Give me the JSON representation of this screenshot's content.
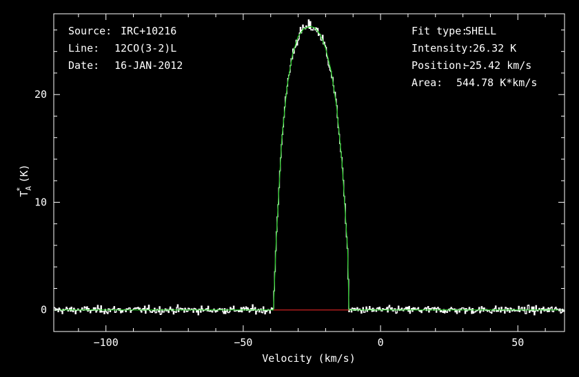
{
  "source_block": {
    "source_label": "Source:",
    "source_value": "IRC+10216",
    "line_label": "Line:",
    "line_value": "12CO(3-2)L",
    "date_label": "Date:",
    "date_value": "16-JAN-2012"
  },
  "fit_block": {
    "fit_type_label": "Fit type:",
    "fit_type_value": "SHELL",
    "intensity_label": "Intensity:",
    "intensity_value": "26.32 K",
    "position_label": "Position:",
    "position_value": "−25.42 km/s",
    "area_label": "Area:",
    "area_value": "544.78 K*km/s"
  },
  "colors": {
    "background": "#000000",
    "axes": "#ffffff",
    "spectrum": "#ffffff",
    "fit": "#22cc22",
    "baseline": "#cc2222"
  },
  "chart_data": {
    "type": "line",
    "xlabel": "Velocity (km/s)",
    "ylabel_main": "T",
    "ylabel_sup": "*",
    "ylabel_sub": "A",
    "ylabel_unit": "(K)",
    "xlim": [
      -119,
      67
    ],
    "ylim": [
      -2,
      27.5
    ],
    "x_ticks": [
      -100,
      -50,
      0,
      50
    ],
    "x_tick_labels": [
      "−100",
      "−50",
      "0",
      "50"
    ],
    "y_ticks": [
      0,
      10,
      20
    ],
    "y_tick_labels": [
      "0",
      "10",
      "20"
    ],
    "fit": {
      "name": "SHELL fit",
      "center": -25.42,
      "peak": 26.32,
      "v_left": -39,
      "v_right": -11.5,
      "x": [
        -119,
        -39,
        -38,
        -36,
        -34,
        -32,
        -30,
        -28,
        -26,
        -25.42,
        -24,
        -22,
        -20,
        -18,
        -16,
        -14,
        -12,
        -11.5,
        67
      ],
      "y": [
        0,
        0,
        6.5,
        15.8,
        20.8,
        23.8,
        25.4,
        26.1,
        26.3,
        26.32,
        26.2,
        25.6,
        24.3,
        22.2,
        18.9,
        13.6,
        5.6,
        0,
        0
      ]
    },
    "baseline": {
      "x": [
        -39,
        -11.5
      ],
      "y": [
        0,
        0
      ]
    },
    "spectrum": {
      "noise_rms": 0.25,
      "step": 0.3,
      "x_range": [
        -119,
        67
      ]
    }
  }
}
